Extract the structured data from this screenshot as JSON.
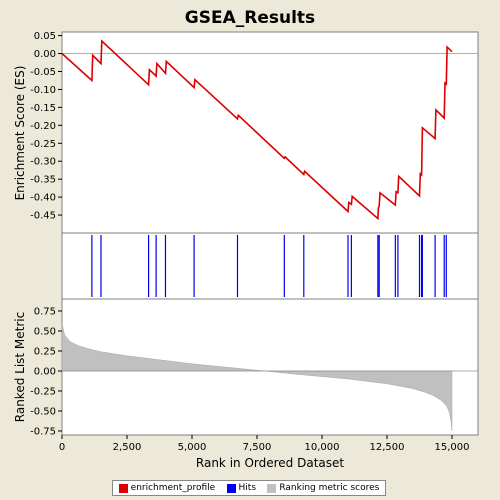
{
  "chart_data": {
    "type": "line",
    "title": "GSEA_Results",
    "xlabel": "Rank in Ordered Dataset",
    "x_range": [
      0,
      16000
    ],
    "x_ticks": [
      0,
      2500,
      5000,
      7500,
      10000,
      12500,
      15000
    ],
    "x_tick_labels": [
      "0",
      "2,500",
      "5,000",
      "7,500",
      "10,000",
      "12,500",
      "15,000"
    ],
    "top_panel": {
      "ylabel": "Enrichment Score (ES)",
      "ylim": [
        -0.5,
        0.06
      ],
      "y_ticks": [
        0.05,
        0.0,
        -0.05,
        -0.1,
        -0.15,
        -0.2,
        -0.25,
        -0.3,
        -0.35,
        -0.4,
        -0.45
      ],
      "y_tick_labels": [
        "0.05",
        "0.00",
        "-0.05",
        "-0.10",
        "-0.15",
        "-0.20",
        "-0.25",
        "-0.30",
        "-0.35",
        "-0.40",
        "-0.45"
      ],
      "series": [
        {
          "name": "enrichment_profile",
          "x": [
            0,
            1150,
            1180,
            1500,
            1530,
            3330,
            3360,
            3620,
            3650,
            3980,
            4010,
            5080,
            5110,
            6750,
            6780,
            8550,
            8580,
            9300,
            9330,
            11000,
            11030,
            11130,
            11160,
            12150,
            12170,
            12200,
            12230,
            12820,
            12850,
            12920,
            12950,
            13750,
            13780,
            13830,
            13860,
            14350,
            14380,
            14700,
            14730,
            14780,
            14810,
            15000
          ],
          "y": [
            0.0,
            -0.075,
            -0.005,
            -0.028,
            0.035,
            -0.087,
            -0.045,
            -0.063,
            -0.028,
            -0.055,
            -0.022,
            -0.095,
            -0.073,
            -0.182,
            -0.172,
            -0.292,
            -0.288,
            -0.337,
            -0.328,
            -0.44,
            -0.415,
            -0.42,
            -0.398,
            -0.46,
            -0.43,
            -0.425,
            -0.388,
            -0.422,
            -0.385,
            -0.388,
            -0.342,
            -0.397,
            -0.335,
            -0.338,
            -0.207,
            -0.237,
            -0.157,
            -0.18,
            -0.082,
            -0.085,
            0.018,
            0.005
          ]
        }
      ]
    },
    "hits_panel": {
      "name": "Hits",
      "positions": [
        1150,
        1500,
        3330,
        3620,
        3980,
        5080,
        6750,
        8550,
        9300,
        11000,
        11130,
        12150,
        12200,
        12820,
        12920,
        13750,
        13830,
        13860,
        14350,
        14700,
        14780
      ]
    },
    "metric_panel": {
      "name": "Ranking metric scores",
      "ylabel": "Ranked List Metric",
      "ylim": [
        -0.8,
        0.9
      ],
      "y_ticks": [
        0.75,
        0.5,
        0.25,
        0.0,
        -0.25,
        -0.5,
        -0.75
      ],
      "y_tick_labels": [
        "0.75",
        "0.50",
        "0.25",
        "0.00",
        "-0.25",
        "-0.50",
        "-0.75"
      ],
      "x": [
        0,
        100,
        300,
        600,
        1000,
        1500,
        2500,
        3500,
        5000,
        7500,
        9000,
        10000,
        11000,
        12000,
        12500,
        13000,
        13500,
        14000,
        14300,
        14600,
        14800,
        14900,
        14950,
        15000
      ],
      "y": [
        0.6,
        0.45,
        0.37,
        0.32,
        0.28,
        0.24,
        0.19,
        0.15,
        0.09,
        0.01,
        -0.04,
        -0.07,
        -0.1,
        -0.14,
        -0.16,
        -0.19,
        -0.22,
        -0.27,
        -0.31,
        -0.37,
        -0.44,
        -0.52,
        -0.6,
        -0.75
      ],
      "colors": {
        "fill": "#c0c0c0"
      }
    },
    "legend": [
      "enrichment_profile",
      "Hits",
      "Ranking metric scores"
    ],
    "colors": {
      "profile": "#dd0000",
      "hits": "#0000ee",
      "metric": "#c0c0c0"
    }
  }
}
